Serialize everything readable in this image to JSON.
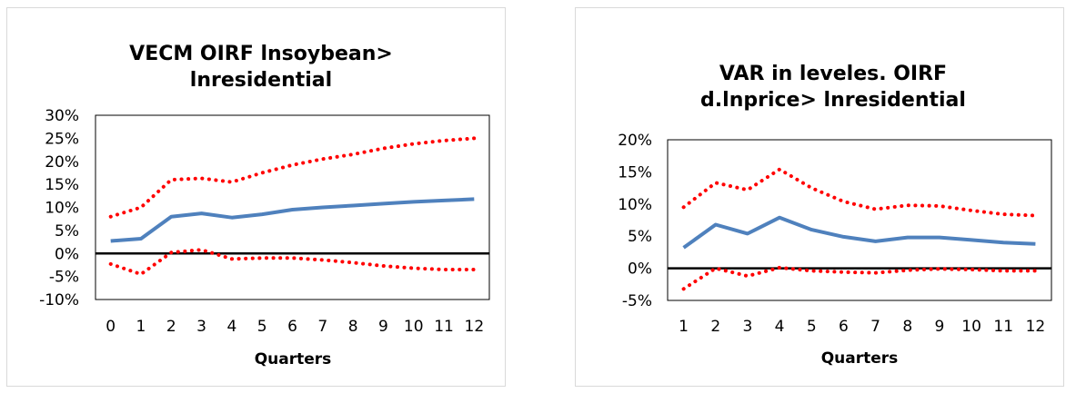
{
  "chart_data": [
    {
      "type": "line",
      "title_lines": [
        "VECM OIRF lnsoybean>",
        "lnresidential"
      ],
      "xlabel": "Quarters",
      "ylabel": "",
      "x": [
        "0",
        "1",
        "2",
        "3",
        "4",
        "5",
        "6",
        "7",
        "8",
        "9",
        "10",
        "11",
        "12"
      ],
      "ylim": [
        -0.1,
        0.3
      ],
      "y_ticks": [
        "30%",
        "25%",
        "20%",
        "15%",
        "10%",
        "5%",
        "0%",
        "-5%",
        "-10%"
      ],
      "grid": false,
      "legend": "none",
      "series": [
        {
          "style": "solid",
          "color": "#4f81bd",
          "values": [
            0.027,
            0.032,
            0.08,
            0.087,
            0.078,
            0.085,
            0.095,
            0.1,
            0.104,
            0.108,
            0.112,
            0.115,
            0.118
          ]
        },
        {
          "style": "dotted",
          "color": "#ff0000",
          "values": [
            0.08,
            0.1,
            0.16,
            0.163,
            0.155,
            0.175,
            0.192,
            0.205,
            0.215,
            0.228,
            0.238,
            0.245,
            0.25
          ]
        },
        {
          "style": "dotted",
          "color": "#ff0000",
          "values": [
            -0.023,
            -0.045,
            0.002,
            0.008,
            -0.012,
            -0.01,
            -0.01,
            -0.014,
            -0.02,
            -0.027,
            -0.032,
            -0.035,
            -0.035
          ]
        }
      ]
    },
    {
      "type": "line",
      "title_lines": [
        "VAR in leveles. OIRF",
        "d.lnprice> lnresidential"
      ],
      "xlabel": "Quarters",
      "ylabel": "",
      "x": [
        "1",
        "2",
        "3",
        "4",
        "5",
        "6",
        "7",
        "8",
        "9",
        "10",
        "11",
        "12"
      ],
      "ylim": [
        -0.05,
        0.2
      ],
      "y_ticks": [
        "20%",
        "15%",
        "10%",
        "5%",
        "0%",
        "-5%"
      ],
      "grid": false,
      "legend": "none",
      "series": [
        {
          "style": "solid",
          "color": "#4f81bd",
          "values": [
            0.032,
            0.068,
            0.054,
            0.079,
            0.06,
            0.049,
            0.042,
            0.048,
            0.048,
            0.044,
            0.04,
            0.038
          ]
        },
        {
          "style": "dotted",
          "color": "#ff0000",
          "values": [
            0.095,
            0.133,
            0.122,
            0.154,
            0.125,
            0.104,
            0.092,
            0.098,
            0.097,
            0.09,
            0.084,
            0.082
          ]
        },
        {
          "style": "dotted",
          "color": "#ff0000",
          "values": [
            -0.032,
            0.0,
            -0.012,
            0.001,
            -0.004,
            -0.006,
            -0.007,
            -0.003,
            -0.001,
            -0.002,
            -0.004,
            -0.004
          ]
        }
      ]
    }
  ]
}
